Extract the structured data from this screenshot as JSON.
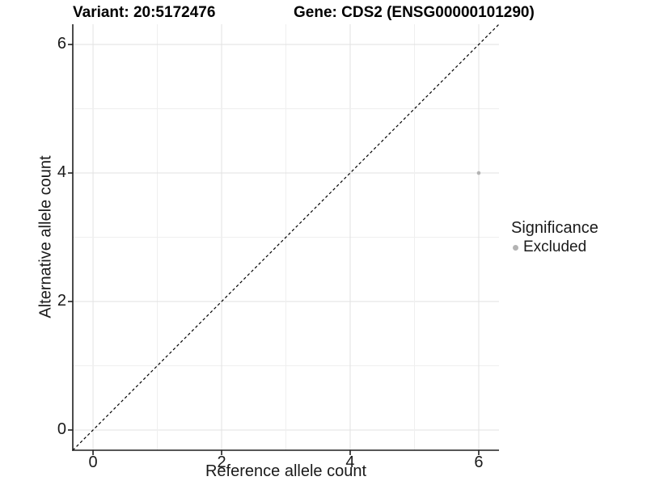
{
  "titles": {
    "variant": "Variant: 20:5172476",
    "gene": "Gene: CDS2 (ENSG00000101290)"
  },
  "axes": {
    "x_label": "Reference allele count",
    "y_label": "Alternative allele count"
  },
  "legend": {
    "title": "Significance",
    "items": [
      {
        "label": "Excluded",
        "color": "#b3b3b3",
        "marker": "circle-icon"
      }
    ]
  },
  "colors": {
    "background": "#ffffff",
    "axis_line": "#1f1f1f",
    "major_grid": "#e2e2e2",
    "minor_grid": "#efefef",
    "reference_line": "#000000",
    "point_excluded": "#b3b3b3",
    "text": "#1a1a1a"
  },
  "chart_data": {
    "type": "scatter",
    "title": "Variant: 20:5172476   |   Gene: CDS2 (ENSG00000101290)",
    "xlabel": "Reference allele count",
    "ylabel": "Alternative allele count",
    "xlim": [
      -0.315,
      6.315
    ],
    "ylim": [
      -0.315,
      6.315
    ],
    "x_ticks": [
      0,
      2,
      4,
      6
    ],
    "y_ticks": [
      0,
      2,
      4,
      6
    ],
    "minor_grid_step": 1,
    "grid": true,
    "legend_position": "right",
    "series": [
      {
        "name": "Excluded",
        "color": "#b3b3b3",
        "marker_radius": 2.3,
        "points": [
          {
            "x": 6,
            "y": 4
          }
        ]
      }
    ],
    "reference_line": {
      "kind": "identity",
      "style": "dashed",
      "from": [
        -0.315,
        -0.315
      ],
      "to": [
        6.315,
        6.315
      ]
    }
  }
}
